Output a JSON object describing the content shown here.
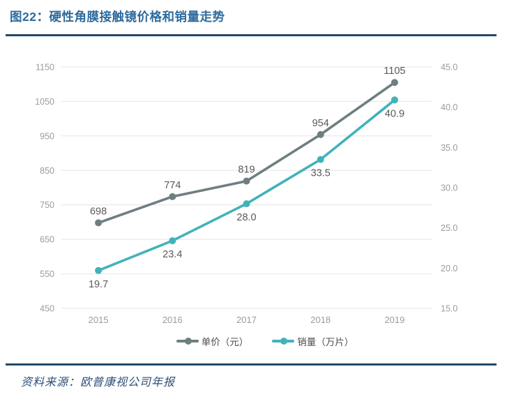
{
  "header": {
    "title": "图22：硬性角膜接触镜价格和销量走势"
  },
  "footer": {
    "source": "资料来源：欧普康视公司年报"
  },
  "colors": {
    "title": "#2e6b9d",
    "divider": "#24476b",
    "grid": "#e4e4e4",
    "axis_tick": "#9b9b9b",
    "data_label": "#595959",
    "legend_text": "#4d4d4d",
    "source_text": "#2d4f76",
    "series_price": "#6e7e81",
    "series_volume": "#41b2ba"
  },
  "chart_data": {
    "type": "line",
    "title": "硬性角膜接触镜价格和销量走势",
    "categories": [
      "2015",
      "2016",
      "2017",
      "2018",
      "2019"
    ],
    "series": [
      {
        "name": "单价（元）",
        "axis": "left",
        "color": "#6e7e81",
        "values": [
          698,
          774,
          819,
          954,
          1105
        ],
        "labels": [
          "698",
          "774",
          "819",
          "954",
          "1105"
        ],
        "label_position": "above"
      },
      {
        "name": "销量（万片）",
        "axis": "right",
        "color": "#41b2ba",
        "values": [
          19.7,
          23.4,
          28.0,
          33.5,
          40.9
        ],
        "labels": [
          "19.7",
          "23.4",
          "28.0",
          "33.5",
          "40.9"
        ],
        "label_position": "below"
      }
    ],
    "left_axis": {
      "min": 450,
      "max": 1150,
      "step": 100,
      "ticks": [
        "1150",
        "1050",
        "950",
        "850",
        "750",
        "650",
        "550",
        "450"
      ]
    },
    "right_axis": {
      "min": 15,
      "max": 45,
      "step": 5,
      "ticks": [
        "45.0",
        "40.0",
        "35.0",
        "30.0",
        "25.0",
        "20.0",
        "15.0"
      ]
    },
    "grid": true,
    "legend_position": "bottom"
  }
}
